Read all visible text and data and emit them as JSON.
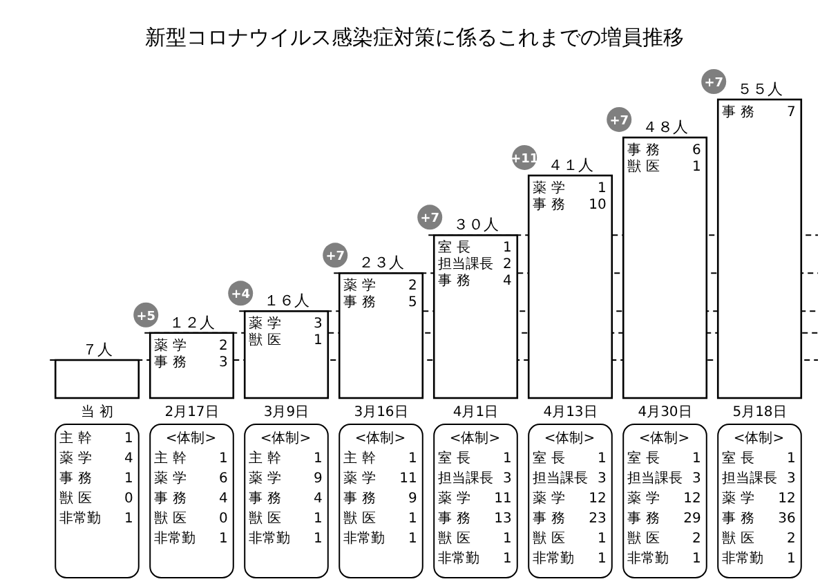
{
  "chart_data": {
    "type": "bar",
    "title": "新型コロナウイルス感染症対策に係るこれまでの増員推移",
    "categories": [
      "当 初",
      "2月17日",
      "3月9日",
      "3月16日",
      "4月1日",
      "4月13日",
      "4月30日",
      "5月18日"
    ],
    "values": [
      7,
      12,
      16,
      23,
      30,
      41,
      48,
      55
    ],
    "value_labels": [
      "７人",
      "１２人",
      "１６人",
      "２３人",
      "３０人",
      "４１人",
      "４８人",
      "５５人"
    ],
    "color": "#ffffff",
    "ref_lines": [
      {
        "axis": "y",
        "value": 7,
        "line_style": "dashed"
      },
      {
        "axis": "y",
        "value": 12,
        "line_style": "dashed"
      },
      {
        "axis": "y",
        "value": 16,
        "line_style": "dashed"
      },
      {
        "axis": "y",
        "value": 23,
        "line_style": "dashed"
      },
      {
        "axis": "y",
        "value": 30,
        "line_style": "dashed"
      }
    ],
    "annotations": [
      "+5",
      "+4",
      "+7",
      "+7",
      "+11",
      "+7",
      "+7",
      "薬 学 2\n事 務 3",
      "薬 学 3\n獣 医 1",
      "薬 学 2\n事 務 5",
      "室 長 1\n担当課長 2\n事 務 4",
      "薬 学 1\n事 務 10",
      "事 務 6\n獣 医 1",
      "事 務 7",
      "主 幹 1\n薬 学 4\n事 務 1\n獣 医 0\n非常勤 1",
      "<体制>\n主 幹 1\n薬 学 6\n事 務 4\n獣 医 0\n非常勤 1",
      "<体制>\n主 幹 1\n薬 学 9\n事 務 4\n獣 医 1\n非常勤 1",
      "<体制>\n主 幹 1\n薬 学 11\n事 務 9\n獣 医 1\n非常勤 1",
      "<体制>\n室 長 1\n担当課長 3\n薬 学 11\n事 務 13\n獣 医 1\n非常勤 1",
      "<体制>\n室 長 1\n担当課長 3\n薬 学 12\n事 務 23\n獣 医 1\n非常勤 1",
      "<体制>\n室 長 1\n担当課長 3\n薬 学 12\n事 務 29\n獣 医 2\n非常勤 1",
      "<体制>\n室 長 1\n担当課長 3\n薬 学 12\n事 務 36\n獣 医 2\n非常勤 1"
    ]
  }
}
